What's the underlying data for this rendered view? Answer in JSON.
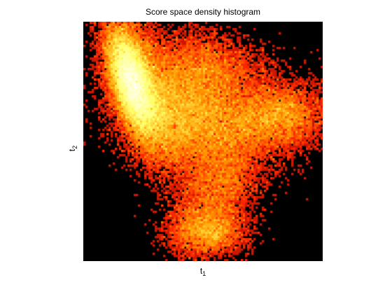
{
  "chart_data": {
    "type": "heatmap",
    "title": "Score space density histogram",
    "xlabel": {
      "base": "t",
      "sub": "1"
    },
    "ylabel": {
      "base": "t",
      "sub": "2"
    },
    "grid": false,
    "background_color": "#000000",
    "colormap": [
      "#000000",
      "#8b0000",
      "#ff2a00",
      "#ff9a00",
      "#ffff66",
      "#ffffff"
    ],
    "colormap_name": "hot",
    "bins": [
      114,
      114
    ],
    "clusters": [
      {
        "x": 0.2,
        "y": 0.25,
        "sx": 0.05,
        "sy": 0.11,
        "rho": 0.55,
        "weight": 0.3
      },
      {
        "x": 0.26,
        "y": 0.3,
        "sx": 0.08,
        "sy": 0.16,
        "rho": 0.6,
        "weight": 0.15
      },
      {
        "x": 0.45,
        "y": 0.4,
        "sx": 0.15,
        "sy": 0.12,
        "rho": 0.3,
        "weight": 0.25
      },
      {
        "x": 0.8,
        "y": 0.4,
        "sx": 0.11,
        "sy": 0.07,
        "rho": -0.1,
        "weight": 0.1
      },
      {
        "x": 0.5,
        "y": 0.2,
        "sx": 0.14,
        "sy": 0.08,
        "rho": 0.2,
        "weight": 0.08
      },
      {
        "x": 0.55,
        "y": 0.72,
        "sx": 0.09,
        "sy": 0.11,
        "rho": -0.4,
        "weight": 0.07
      },
      {
        "x": 0.52,
        "y": 0.88,
        "sx": 0.08,
        "sy": 0.05,
        "rho": 0.0,
        "weight": 0.05
      }
    ]
  }
}
